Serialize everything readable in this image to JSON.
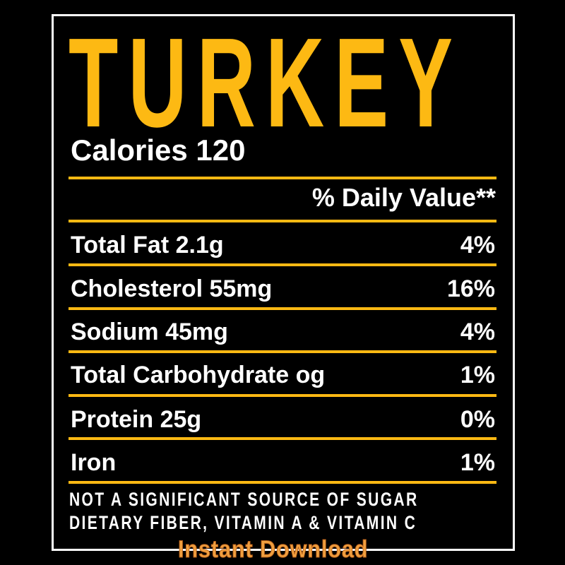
{
  "title": "TURKEY",
  "calories": "Calories 120",
  "daily_value_header": "% Daily Value**",
  "rows": [
    {
      "label": "Total Fat 2.1g",
      "value": "4%"
    },
    {
      "label": "Cholesterol 55mg",
      "value": "16%"
    },
    {
      "label": "Sodium 45mg",
      "value": "4%"
    },
    {
      "label": "Total Carbohydrate og",
      "value": "1%"
    },
    {
      "label": "Protein 25g",
      "value": "0%"
    },
    {
      "label": "Iron",
      "value": "1%"
    }
  ],
  "footer": [
    "NOT A SIGNIFICANT SOURCE OF SUGAR",
    "DIETARY FIBER, VITAMIN A & VITAMIN C"
  ],
  "watermark": "Instant Download",
  "colors": {
    "accent": "#fdb913",
    "background": "#000000",
    "text": "#ffffff"
  }
}
